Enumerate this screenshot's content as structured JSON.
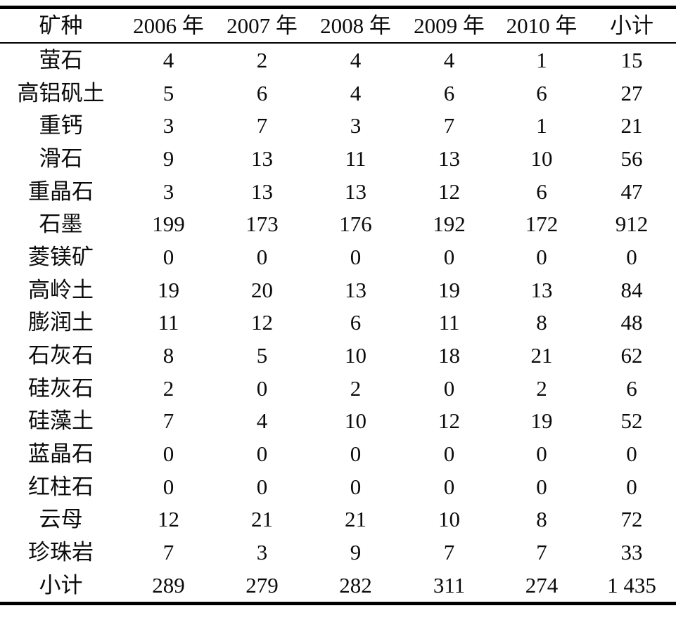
{
  "table": {
    "columns": [
      "矿种",
      "2006 年",
      "2007 年",
      "2008 年",
      "2009 年",
      "2010 年",
      "小计"
    ],
    "rows": [
      {
        "name": "萤石",
        "values": [
          "4",
          "2",
          "4",
          "4",
          "1",
          "15"
        ]
      },
      {
        "name": "高铝矾土",
        "values": [
          "5",
          "6",
          "4",
          "6",
          "6",
          "27"
        ]
      },
      {
        "name": "重钙",
        "values": [
          "3",
          "7",
          "3",
          "7",
          "1",
          "21"
        ]
      },
      {
        "name": "滑石",
        "values": [
          "9",
          "13",
          "11",
          "13",
          "10",
          "56"
        ]
      },
      {
        "name": "重晶石",
        "values": [
          "3",
          "13",
          "13",
          "12",
          "6",
          "47"
        ]
      },
      {
        "name": "石墨",
        "values": [
          "199",
          "173",
          "176",
          "192",
          "172",
          "912"
        ]
      },
      {
        "name": "菱镁矿",
        "values": [
          "0",
          "0",
          "0",
          "0",
          "0",
          "0"
        ]
      },
      {
        "name": "高岭土",
        "values": [
          "19",
          "20",
          "13",
          "19",
          "13",
          "84"
        ]
      },
      {
        "name": "膨润土",
        "values": [
          "11",
          "12",
          "6",
          "11",
          "8",
          "48"
        ]
      },
      {
        "name": "石灰石",
        "values": [
          "8",
          "5",
          "10",
          "18",
          "21",
          "62"
        ]
      },
      {
        "name": "硅灰石",
        "values": [
          "2",
          "0",
          "2",
          "0",
          "2",
          "6"
        ]
      },
      {
        "name": "硅藻土",
        "values": [
          "7",
          "4",
          "10",
          "12",
          "19",
          "52"
        ]
      },
      {
        "name": "蓝晶石",
        "values": [
          "0",
          "0",
          "0",
          "0",
          "0",
          "0"
        ]
      },
      {
        "name": "红柱石",
        "values": [
          "0",
          "0",
          "0",
          "0",
          "0",
          "0"
        ]
      },
      {
        "name": "云母",
        "values": [
          "12",
          "21",
          "21",
          "10",
          "8",
          "72"
        ]
      },
      {
        "name": "珍珠岩",
        "values": [
          "7",
          "3",
          "9",
          "7",
          "7",
          "33"
        ]
      },
      {
        "name": "小计",
        "values": [
          "289",
          "279",
          "282",
          "311",
          "274",
          "1 435"
        ]
      }
    ]
  },
  "chart_data": {
    "type": "table",
    "columns": [
      "矿种",
      "2006 年",
      "2007 年",
      "2008 年",
      "2009 年",
      "2010 年",
      "小计"
    ],
    "row_totals_label": "小计",
    "rows": [
      [
        "萤石",
        4,
        2,
        4,
        4,
        1,
        15
      ],
      [
        "高铝矾土",
        5,
        6,
        4,
        6,
        6,
        27
      ],
      [
        "重钙",
        3,
        7,
        3,
        7,
        1,
        21
      ],
      [
        "滑石",
        9,
        13,
        11,
        13,
        10,
        56
      ],
      [
        "重晶石",
        3,
        13,
        13,
        12,
        6,
        47
      ],
      [
        "石墨",
        199,
        173,
        176,
        192,
        172,
        912
      ],
      [
        "菱镁矿",
        0,
        0,
        0,
        0,
        0,
        0
      ],
      [
        "高岭土",
        19,
        20,
        13,
        19,
        13,
        84
      ],
      [
        "膨润土",
        11,
        12,
        6,
        11,
        8,
        48
      ],
      [
        "石灰石",
        8,
        5,
        10,
        18,
        21,
        62
      ],
      [
        "硅灰石",
        2,
        0,
        2,
        0,
        2,
        6
      ],
      [
        "硅藻土",
        7,
        4,
        10,
        12,
        19,
        52
      ],
      [
        "蓝晶石",
        0,
        0,
        0,
        0,
        0,
        0
      ],
      [
        "红柱石",
        0,
        0,
        0,
        0,
        0,
        0
      ],
      [
        "云母",
        12,
        21,
        21,
        10,
        8,
        72
      ],
      [
        "珍珠岩",
        7,
        3,
        9,
        7,
        7,
        33
      ],
      [
        "小计",
        289,
        279,
        282,
        311,
        274,
        1435
      ]
    ]
  },
  "colors": {
    "text": "#0b0b0b",
    "background": "#ffffff",
    "rule": "#000000"
  }
}
